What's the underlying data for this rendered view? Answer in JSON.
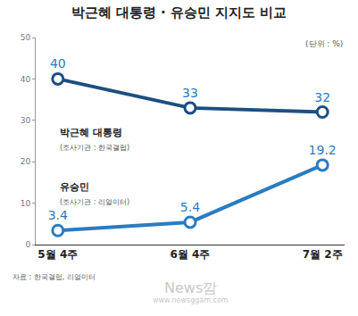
{
  "chart_data": {
    "type": "line",
    "title": "박근혜 대통령 · 유승민 지지도 비교",
    "unit_note": "(단위 : %)",
    "categories": [
      "5월 4주",
      "6월 4주",
      "7월 2주"
    ],
    "series": [
      {
        "name": "박근혜 대통령",
        "source": "(조사기관 : 한국갤럽)",
        "color": "#1c4f80",
        "marker": "circle",
        "line_style": "solid",
        "values": [
          40,
          33,
          32
        ]
      },
      {
        "name": "유승민",
        "source": "(조사기관 : 리얼미터)",
        "color": "#2a7cc2",
        "marker": "circle",
        "line_style": "solid",
        "values": [
          3.4,
          5.4,
          19.2
        ]
      }
    ],
    "ylim": [
      0,
      50
    ],
    "yticks": [
      0,
      10,
      20,
      30,
      40,
      50
    ],
    "grid": false,
    "data_labels": true,
    "source": "자료 : 한국갤럽, 리얼미터",
    "watermark": [
      "News깜",
      "www.newsggam.com"
    ]
  }
}
